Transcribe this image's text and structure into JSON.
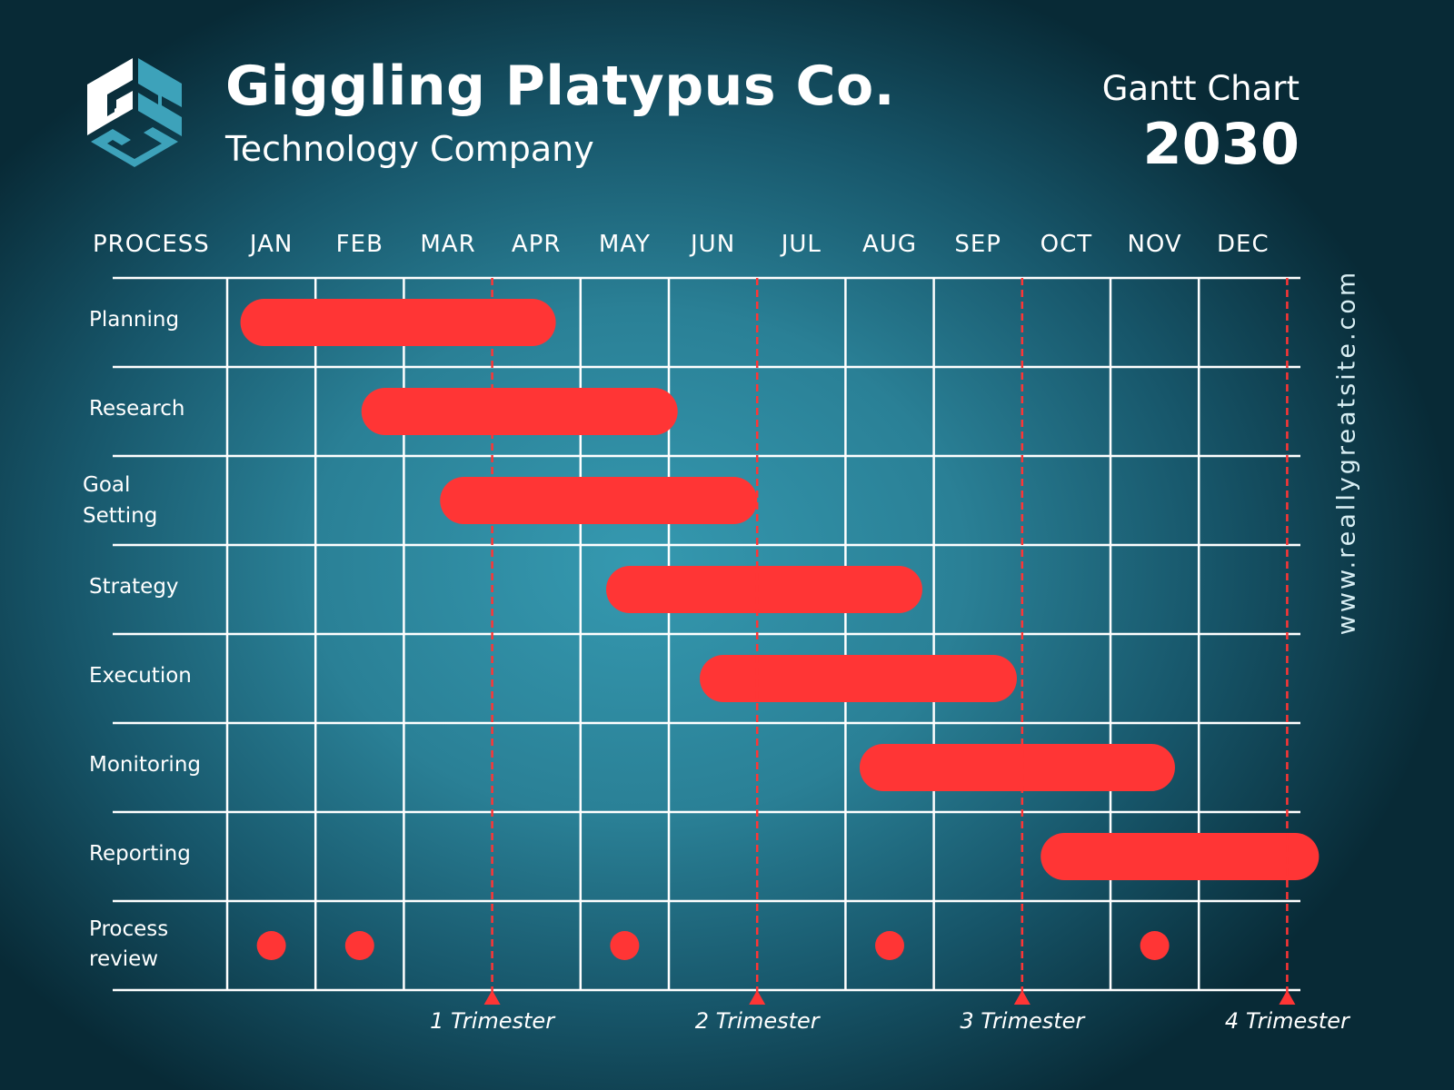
{
  "header": {
    "company": "Giggling Platypus Co.",
    "subtitle": "Technology Company",
    "chart_label": "Gantt Chart",
    "year": "2030",
    "logo_text": "GSS",
    "url": "www.reallygreatsite.com"
  },
  "colors": {
    "bar": "#ff3535",
    "grid": "#ffffff",
    "marker": "#ff3535"
  },
  "chart_data": {
    "type": "gantt",
    "title": "Gantt Chart 2030",
    "column_header": "PROCESS",
    "categories": [
      "JAN",
      "FEB",
      "MAR",
      "APR",
      "MAY",
      "JUN",
      "JUL",
      "AUG",
      "SEP",
      "OCT",
      "NOV",
      "DEC"
    ],
    "tasks": [
      {
        "name": "Planning",
        "start": 0.15,
        "end": 3.72
      },
      {
        "name": "Research",
        "start": 1.52,
        "end": 5.1
      },
      {
        "name": "Goal Setting",
        "lines": [
          "Goal",
          "Setting"
        ],
        "start": 2.41,
        "end": 6.0
      },
      {
        "name": "Strategy",
        "start": 4.29,
        "end": 7.87
      },
      {
        "name": "Execution",
        "start": 5.35,
        "end": 8.94
      },
      {
        "name": "Monitoring",
        "start": 7.16,
        "end": 10.73
      },
      {
        "name": "Reporting",
        "start": 9.21,
        "end": 12.36
      },
      {
        "name": "Process review",
        "lines": [
          "Process",
          "review"
        ],
        "milestones": [
          0.5,
          1.5,
          4.5,
          7.5,
          10.5
        ]
      }
    ],
    "markers": [
      {
        "at": 3,
        "label": "1 Trimester"
      },
      {
        "at": 6,
        "label": "2 Trimester"
      },
      {
        "at": 9,
        "label": "3 Trimester"
      },
      {
        "at": 12,
        "label": "4 Trimester"
      }
    ]
  }
}
